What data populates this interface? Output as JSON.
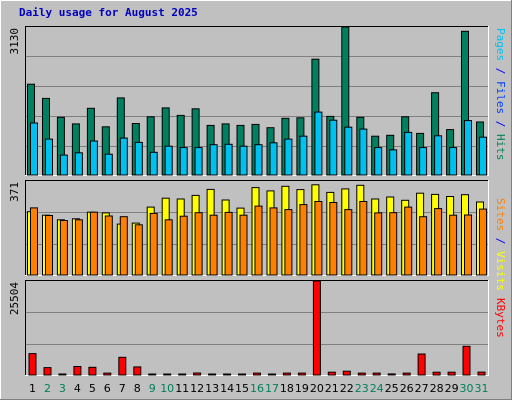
{
  "chart_data": {
    "type": "bar",
    "title": "Daily usage for August 2025",
    "x": [
      "1",
      "2",
      "3",
      "4",
      "5",
      "6",
      "7",
      "8",
      "9",
      "10",
      "11",
      "12",
      "13",
      "14",
      "15",
      "16",
      "17",
      "18",
      "19",
      "20",
      "21",
      "22",
      "23",
      "24",
      "25",
      "26",
      "27",
      "28",
      "29",
      "30",
      "31"
    ],
    "weekend_days": [
      2,
      3,
      9,
      10,
      16,
      17,
      23,
      24,
      30,
      31
    ],
    "panels": [
      {
        "name": "hits-pages-files",
        "max_label": "3130",
        "ymax": 3130,
        "axis_labels": [
          {
            "text": "Pages",
            "color": "#00c0f0"
          },
          {
            "text": " / ",
            "color": "#0000ff"
          },
          {
            "text": "Files",
            "color": "#0040ff"
          },
          {
            "text": " / ",
            "color": "#0000ff"
          },
          {
            "text": "Hits",
            "color": "#00805c"
          }
        ],
        "series": [
          {
            "name": "Hits",
            "color": "#008060",
            "values": [
              1920,
              1620,
              1220,
              1080,
              1410,
              1020,
              1630,
              1090,
              1230,
              1420,
              1260,
              1400,
              1050,
              1080,
              1050,
              1070,
              1000,
              1200,
              1210,
              2450,
              1240,
              3130,
              1220,
              820,
              840,
              1230,
              880,
              1740,
              960,
              3040,
              1120
            ]
          },
          {
            "name": "Files",
            "color": "#00c0f0",
            "values": [
              1100,
              760,
              420,
              470,
              720,
              440,
              780,
              690,
              480,
              610,
              580,
              580,
              640,
              650,
              610,
              640,
              680,
              760,
              820,
              1330,
              1160,
              1010,
              970,
              580,
              530,
              900,
              580,
              830,
              580,
              1150,
              800
            ]
          }
        ]
      },
      {
        "name": "visits-sites",
        "max_label": "371",
        "ymax": 371,
        "axis_labels": [
          {
            "text": "Sites",
            "color": "#ff8000"
          },
          {
            "text": " / ",
            "color": "#0000ff"
          },
          {
            "text": "Visits",
            "color": "#ffff00"
          }
        ],
        "series": [
          {
            "name": "Visits",
            "color": "#ffff00",
            "values": [
              250,
              236,
              218,
              222,
              248,
              245,
              201,
              205,
              268,
              303,
              300,
              314,
              338,
              296,
              264,
              345,
              332,
              350,
              337,
              356,
              326,
              340,
              354,
              300,
              308,
              295,
              323,
              318,
              310,
              317,
              288
            ]
          },
          {
            "name": "Sites",
            "color": "#ff8000",
            "values": [
              265,
              235,
              215,
              218,
              248,
              233,
              230,
              198,
              243,
              218,
              232,
              246,
              236,
              247,
              236,
              272,
              265,
              258,
              278,
              290,
              286,
              258,
              290,
              245,
              246,
              268,
              230,
              262,
              236,
              237,
              260
            ]
          }
        ]
      },
      {
        "name": "kbytes",
        "max_label": "25504",
        "ymax": 25504,
        "axis_labels": [
          {
            "text": "KBytes",
            "color": "#ff0000"
          }
        ],
        "series": [
          {
            "name": "KBytes",
            "color": "#ff0000",
            "values": [
              5800,
              2000,
              260,
              2300,
              2100,
              510,
              4800,
              2200,
              260,
              260,
              260,
              530,
              260,
              260,
              260,
              520,
              260,
              510,
              520,
              25504,
              770,
              1030,
              510,
              510,
              300,
              510,
              5700,
              770,
              770,
              7800,
              780
            ]
          }
        ]
      }
    ]
  }
}
